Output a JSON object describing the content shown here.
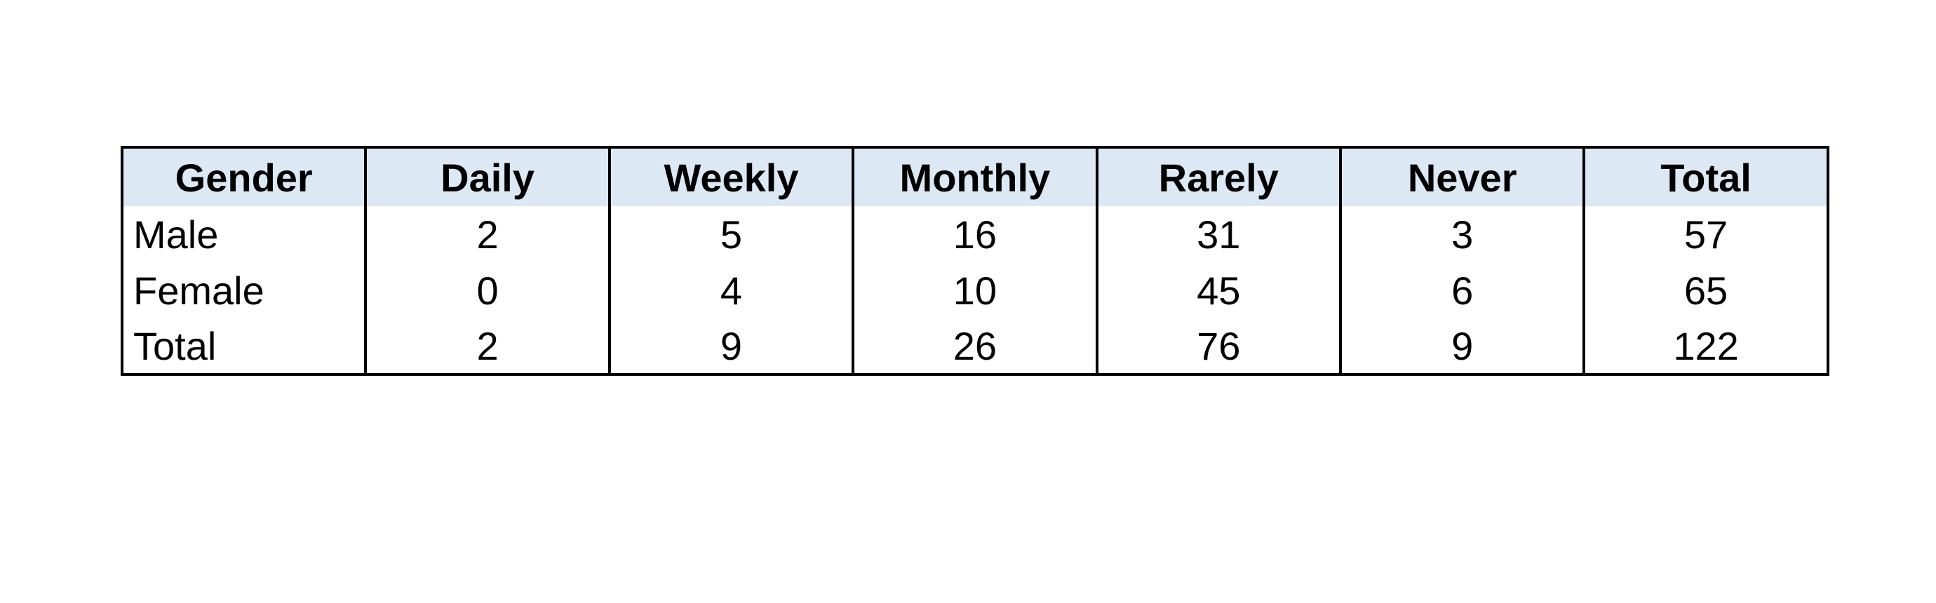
{
  "chart_data": {
    "type": "table",
    "columns": [
      "Gender",
      "Daily",
      "Weekly",
      "Monthly",
      "Rarely",
      "Never",
      "Total"
    ],
    "rows": [
      [
        "Male",
        "2",
        "5",
        "16",
        "31",
        "3",
        "57"
      ],
      [
        "Female",
        "0",
        "4",
        "10",
        "45",
        "6",
        "65"
      ],
      [
        "Total",
        "2",
        "9",
        "26",
        "76",
        "9",
        "122"
      ]
    ],
    "header_background": "#dde8f5",
    "border_color": "#000000"
  }
}
